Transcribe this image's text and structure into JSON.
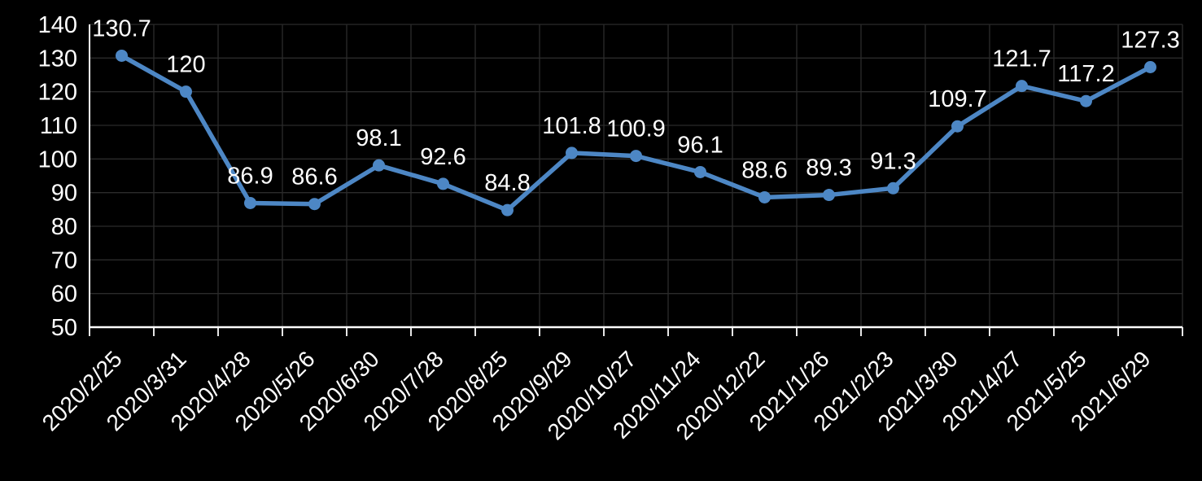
{
  "chart_data": {
    "type": "line",
    "title": "",
    "xlabel": "",
    "ylabel": "",
    "categories": [
      "2020/2/25",
      "2020/3/31",
      "2020/4/28",
      "2020/5/26",
      "2020/6/30",
      "2020/7/28",
      "2020/8/25",
      "2020/9/29",
      "2020/10/27",
      "2020/11/24",
      "2020/12/22",
      "2021/1/26",
      "2021/2/23",
      "2021/3/30",
      "2021/4/27",
      "2021/5/25",
      "2021/6/29"
    ],
    "values": [
      130.7,
      120,
      86.9,
      86.6,
      98.1,
      92.6,
      84.8,
      101.8,
      100.9,
      96.1,
      88.6,
      89.3,
      91.3,
      109.7,
      121.7,
      117.2,
      127.3
    ],
    "data_labels": [
      "130.7",
      "120",
      "86.9",
      "86.6",
      "98.1",
      "92.6",
      "84.8",
      "101.8",
      "100.9",
      "96.1",
      "88.6",
      "89.3",
      "91.3",
      "109.7",
      "121.7",
      "117.2",
      "127.3"
    ],
    "ylim": [
      50,
      140
    ],
    "y_ticks": [
      50,
      60,
      70,
      80,
      90,
      100,
      110,
      120,
      130,
      140
    ],
    "ytick_step": 10,
    "grid": true,
    "legend": "none",
    "x_label_rotation": -45,
    "colors": {
      "series": "#4D87C5",
      "background": "#000000",
      "gridline": "#2B2B2B",
      "axis": "#FFFFFF",
      "tick_label": "#FFFFFF",
      "data_label": "#FFFFFF"
    }
  }
}
